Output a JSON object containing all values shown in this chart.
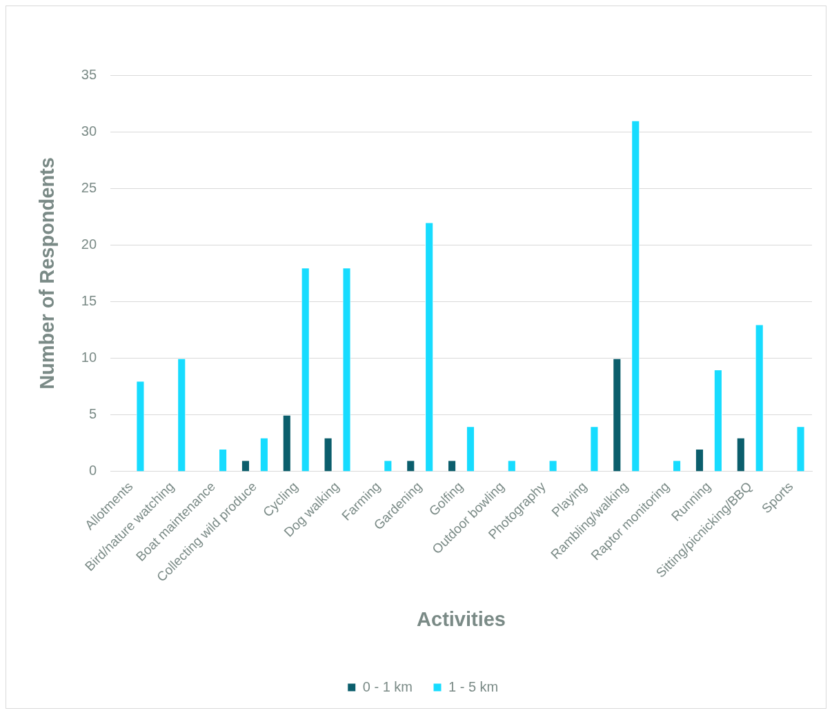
{
  "chart_data": {
    "type": "bar",
    "xlabel": "Activities",
    "ylabel": "Number of Respondents",
    "categories": [
      "Allotments",
      "Bird/nature watching",
      "Boat maintenance",
      "Collecting wild produce",
      "Cycling",
      "Dog walking",
      "Farming",
      "Gardening",
      "Golfing",
      "Outdoor bowling",
      "Photography",
      "Playing",
      "Rambling/walking",
      "Raptor monitoring",
      "Running",
      "Sitting/picnicking/BBQ",
      "Sports"
    ],
    "series": [
      {
        "name": "0 - 1 km",
        "color": "#0b5e6c",
        "values": [
          0,
          0,
          0,
          1,
          5,
          3,
          0,
          1,
          1,
          0,
          0,
          0,
          10,
          0,
          2,
          3,
          0
        ]
      },
      {
        "name": "1 - 5 km",
        "color": "#17dcff",
        "values": [
          8,
          10,
          2,
          3,
          18,
          18,
          1,
          22,
          4,
          1,
          1,
          4,
          31,
          1,
          9,
          13,
          4
        ]
      }
    ],
    "ylim": [
      0,
      35
    ],
    "yticks": [
      0,
      5,
      10,
      15,
      20,
      25,
      30,
      35
    ],
    "grid": "y",
    "legend": "bottom"
  }
}
